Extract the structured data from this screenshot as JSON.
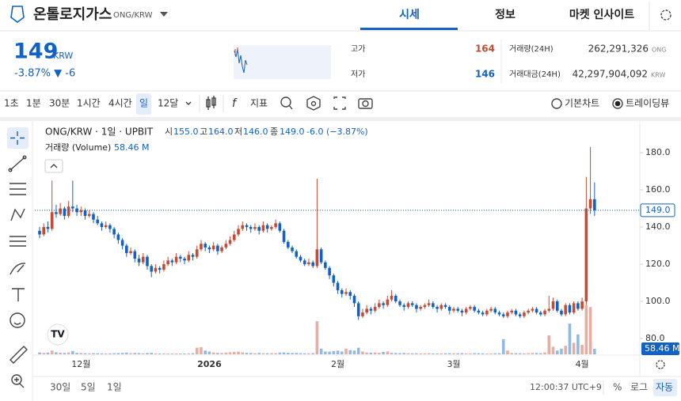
{
  "header": {
    "title": "온톨로지가스",
    "pair": "ONG/KRW",
    "tabs": [
      "시세",
      "정보",
      "마켓 인사이트"
    ]
  },
  "ticker": {
    "price": "149",
    "unit": "KRW",
    "change": "-3.87% ▼ -6",
    "high_label": "고가",
    "high": "164",
    "low_label": "저가",
    "low": "146",
    "vol_label": "거래량(24H)",
    "vol": "262,291,326",
    "vol_unit": "ONG",
    "amt_label": "거래대금(24H)",
    "amt": "42,297,904,092",
    "amt_unit": "KRW"
  },
  "toolbar": {
    "intervals": [
      "1초",
      "1분",
      "30분",
      "1시간",
      "4시간",
      "일",
      "12달"
    ],
    "indicator": "지표",
    "modes": [
      "기본차트",
      "트레이딩뷰"
    ]
  },
  "chart_data": {
    "type": "candlestick",
    "title": "ONG/KRW · 1일 · UPBIT",
    "ohlc_legend": [
      [
        "시",
        "155.0"
      ],
      [
        "고",
        "164.0"
      ],
      [
        "저",
        "146.0"
      ],
      [
        "종",
        "149.0"
      ]
    ],
    "change_label": "-6.0 (−3.87%)",
    "volume_title": "거래량 (Volume)",
    "up_color": "#c84a31",
    "down_color": "#1261c4",
    "ylim": [
      71.5,
      196.2
    ],
    "yticks": [
      {
        "value": 80,
        "label": "80.0"
      },
      {
        "value": 100,
        "label": "100.0"
      },
      {
        "value": 120,
        "label": "120.0"
      },
      {
        "value": 140,
        "label": "140.0"
      },
      {
        "value": 160,
        "label": "160.0"
      },
      {
        "value": 180,
        "label": "180.0"
      }
    ],
    "volume_ylim": [
      0,
      2450
    ],
    "price_marker": {
      "value": 149,
      "label": "149.0"
    },
    "volume_marker": {
      "value": 58.46,
      "label": "58.46 M"
    },
    "categories": [
      null,
      null,
      null,
      null,
      null,
      null,
      null,
      null,
      null,
      null,
      "12월",
      null,
      null,
      null,
      null,
      null,
      null,
      null,
      null,
      null,
      null,
      null,
      null,
      null,
      null,
      null,
      null,
      null,
      null,
      null,
      null,
      null,
      null,
      null,
      null,
      null,
      null,
      null,
      null,
      null,
      null,
      "2026",
      null,
      null,
      null,
      null,
      null,
      null,
      null,
      null,
      null,
      null,
      null,
      null,
      null,
      null,
      null,
      null,
      null,
      null,
      null,
      null,
      null,
      null,
      null,
      null,
      null,
      null,
      null,
      null,
      null,
      null,
      "2월",
      null,
      null,
      null,
      null,
      null,
      null,
      null,
      null,
      null,
      null,
      null,
      null,
      null,
      null,
      null,
      null,
      null,
      null,
      null,
      null,
      null,
      null,
      null,
      null,
      null,
      null,
      null,
      "3월",
      null,
      null,
      null,
      null,
      null,
      null,
      null,
      null,
      null,
      null,
      null,
      null,
      null,
      null,
      null,
      null,
      null,
      null,
      null,
      null,
      null,
      null,
      null,
      null,
      null,
      null,
      null,
      null,
      null,
      null,
      "4월",
      null,
      null,
      null
    ],
    "ohlc": [
      [
        138,
        140,
        134,
        136
      ],
      [
        136,
        142,
        135,
        140
      ],
      [
        140,
        143,
        137,
        139
      ],
      [
        139,
        165,
        138,
        148
      ],
      [
        148,
        152,
        145,
        147
      ],
      [
        147,
        153,
        146,
        150
      ],
      [
        150,
        151,
        144,
        146
      ],
      [
        146,
        154,
        145,
        151
      ],
      [
        151,
        165,
        148,
        150
      ],
      [
        150,
        152,
        146,
        148
      ],
      [
        148,
        151,
        146,
        149
      ],
      [
        149,
        150,
        144,
        146
      ],
      [
        146,
        149,
        145,
        147
      ],
      [
        147,
        148,
        142,
        144
      ],
      [
        144,
        146,
        141,
        142
      ],
      [
        142,
        143,
        138,
        140
      ],
      [
        140,
        143,
        139,
        141
      ],
      [
        141,
        142,
        137,
        139
      ],
      [
        139,
        140,
        134,
        136
      ],
      [
        136,
        137,
        131,
        133
      ],
      [
        133,
        134,
        128,
        130
      ],
      [
        130,
        131,
        124,
        126
      ],
      [
        126,
        129,
        125,
        127
      ],
      [
        127,
        128,
        121,
        123
      ],
      [
        123,
        125,
        119,
        121
      ],
      [
        121,
        126,
        120,
        124
      ],
      [
        124,
        125,
        117,
        119
      ],
      [
        119,
        120,
        113,
        116
      ],
      [
        116,
        120,
        115,
        118
      ],
      [
        118,
        119,
        115,
        117
      ],
      [
        117,
        122,
        116,
        120
      ],
      [
        120,
        124,
        119,
        122
      ],
      [
        122,
        123,
        119,
        121
      ],
      [
        121,
        126,
        120,
        124
      ],
      [
        124,
        125,
        121,
        123
      ],
      [
        123,
        124,
        120,
        122
      ],
      [
        122,
        127,
        121,
        125
      ],
      [
        125,
        126,
        122,
        124
      ],
      [
        124,
        130,
        123,
        128
      ],
      [
        128,
        133,
        127,
        131
      ],
      [
        131,
        132,
        127,
        129
      ],
      [
        129,
        130,
        126,
        128
      ],
      [
        128,
        132,
        127,
        130
      ],
      [
        130,
        131,
        125,
        127
      ],
      [
        127,
        130,
        126,
        129
      ],
      [
        129,
        133,
        128,
        131
      ],
      [
        131,
        135,
        130,
        133
      ],
      [
        133,
        138,
        132,
        136
      ],
      [
        136,
        141,
        135,
        139
      ],
      [
        139,
        143,
        138,
        141
      ],
      [
        141,
        142,
        138,
        140
      ],
      [
        140,
        141,
        137,
        139
      ],
      [
        139,
        142,
        138,
        140
      ],
      [
        140,
        141,
        136,
        138
      ],
      [
        138,
        143,
        137,
        141
      ],
      [
        141,
        142,
        137,
        139
      ],
      [
        139,
        141,
        138,
        140
      ],
      [
        140,
        144,
        139,
        142
      ],
      [
        142,
        143,
        137,
        138
      ],
      [
        138,
        139,
        131,
        132
      ],
      [
        132,
        133,
        128,
        129
      ],
      [
        129,
        130,
        126,
        127
      ],
      [
        127,
        128,
        123,
        124
      ],
      [
        124,
        125,
        121,
        122
      ],
      [
        122,
        123,
        119,
        120
      ],
      [
        120,
        123,
        119,
        121
      ],
      [
        121,
        122,
        118,
        119
      ],
      [
        119,
        166,
        118,
        128
      ],
      [
        128,
        129,
        120,
        121
      ],
      [
        121,
        122,
        117,
        118
      ],
      [
        118,
        119,
        112,
        114
      ],
      [
        114,
        115,
        108,
        110
      ],
      [
        110,
        111,
        104,
        106
      ],
      [
        106,
        107,
        102,
        104
      ],
      [
        104,
        107,
        103,
        105
      ],
      [
        105,
        106,
        101,
        103
      ],
      [
        103,
        104,
        97,
        99
      ],
      [
        99,
        100,
        90,
        92
      ],
      [
        92,
        96,
        91,
        94
      ],
      [
        94,
        98,
        93,
        96
      ],
      [
        96,
        97,
        93,
        95
      ],
      [
        95,
        99,
        94,
        97
      ],
      [
        97,
        101,
        96,
        99
      ],
      [
        99,
        100,
        96,
        98
      ],
      [
        98,
        103,
        97,
        101
      ],
      [
        101,
        106,
        100,
        103
      ],
      [
        103,
        104,
        99,
        100
      ],
      [
        100,
        101,
        97,
        98
      ],
      [
        98,
        99,
        95,
        97
      ],
      [
        97,
        100,
        96,
        99
      ],
      [
        99,
        100,
        97,
        98
      ],
      [
        98,
        99,
        94,
        96
      ],
      [
        96,
        98,
        95,
        97
      ],
      [
        97,
        99,
        96,
        98
      ],
      [
        98,
        101,
        97,
        99
      ],
      [
        99,
        100,
        96,
        97
      ],
      [
        97,
        98,
        94,
        96
      ],
      [
        96,
        99,
        95,
        98
      ],
      [
        98,
        99,
        96,
        97
      ],
      [
        97,
        98,
        93,
        95
      ],
      [
        95,
        97,
        94,
        96
      ],
      [
        96,
        97,
        94,
        95
      ],
      [
        95,
        96,
        92,
        94
      ],
      [
        94,
        97,
        93,
        96
      ],
      [
        96,
        98,
        95,
        97
      ],
      [
        97,
        98,
        94,
        95
      ],
      [
        95,
        96,
        93,
        94
      ],
      [
        94,
        95,
        92,
        93
      ],
      [
        93,
        96,
        92,
        95
      ],
      [
        95,
        97,
        94,
        96
      ],
      [
        96,
        97,
        93,
        94
      ],
      [
        94,
        95,
        92,
        93
      ],
      [
        93,
        94,
        91,
        92
      ],
      [
        92,
        95,
        91,
        94
      ],
      [
        94,
        96,
        93,
        95
      ],
      [
        95,
        96,
        92,
        93
      ],
      [
        93,
        94,
        91,
        92
      ],
      [
        92,
        95,
        91,
        94
      ],
      [
        94,
        96,
        93,
        95
      ],
      [
        95,
        97,
        94,
        96
      ],
      [
        96,
        97,
        93,
        94
      ],
      [
        94,
        95,
        92,
        93
      ],
      [
        93,
        96,
        92,
        95
      ],
      [
        95,
        103,
        94,
        96
      ],
      [
        96,
        102,
        95,
        100
      ],
      [
        100,
        101,
        94,
        95
      ],
      [
        95,
        96,
        92,
        93
      ],
      [
        93,
        99,
        92,
        98
      ],
      [
        98,
        99,
        93,
        94
      ],
      [
        94,
        100,
        93,
        99
      ],
      [
        99,
        100,
        95,
        96
      ],
      [
        96,
        102,
        95,
        100
      ],
      [
        100,
        167,
        98,
        150
      ],
      [
        150,
        183,
        147,
        155
      ],
      [
        155,
        164,
        146,
        149
      ]
    ],
    "volume": [
      20,
      15,
      18,
      40,
      22,
      18,
      15,
      20,
      35,
      16,
      14,
      12,
      10,
      12,
      11,
      10,
      9,
      10,
      12,
      14,
      15,
      18,
      12,
      14,
      13,
      11,
      14,
      16,
      10,
      9,
      10,
      9,
      8,
      9,
      8,
      8,
      10,
      12,
      70,
      75,
      40,
      30,
      20,
      15,
      14,
      18,
      22,
      25,
      28,
      20,
      16,
      14,
      12,
      15,
      12,
      11,
      13,
      12,
      18,
      20,
      16,
      14,
      15,
      12,
      10,
      11,
      12,
      350,
      60,
      30,
      28,
      35,
      40,
      30,
      60,
      45,
      40,
      70,
      30,
      20,
      18,
      20,
      16,
      25,
      30,
      18,
      14,
      12,
      15,
      12,
      10,
      11,
      9,
      10,
      12,
      10,
      9,
      10,
      11,
      12,
      10,
      11,
      12,
      10,
      9,
      12,
      11,
      10,
      9,
      10,
      11,
      12,
      160,
      40,
      14,
      12,
      11,
      10,
      12,
      14,
      15,
      12,
      20,
      200,
      80,
      40,
      60,
      90,
      325,
      120,
      210,
      100,
      520,
      500,
      58.46
    ]
  },
  "footer": {
    "ranges": [
      "30일",
      "5일",
      "1일"
    ],
    "time": "12:00:37 UTC+9",
    "options": [
      "%",
      "로그",
      "자동"
    ]
  }
}
